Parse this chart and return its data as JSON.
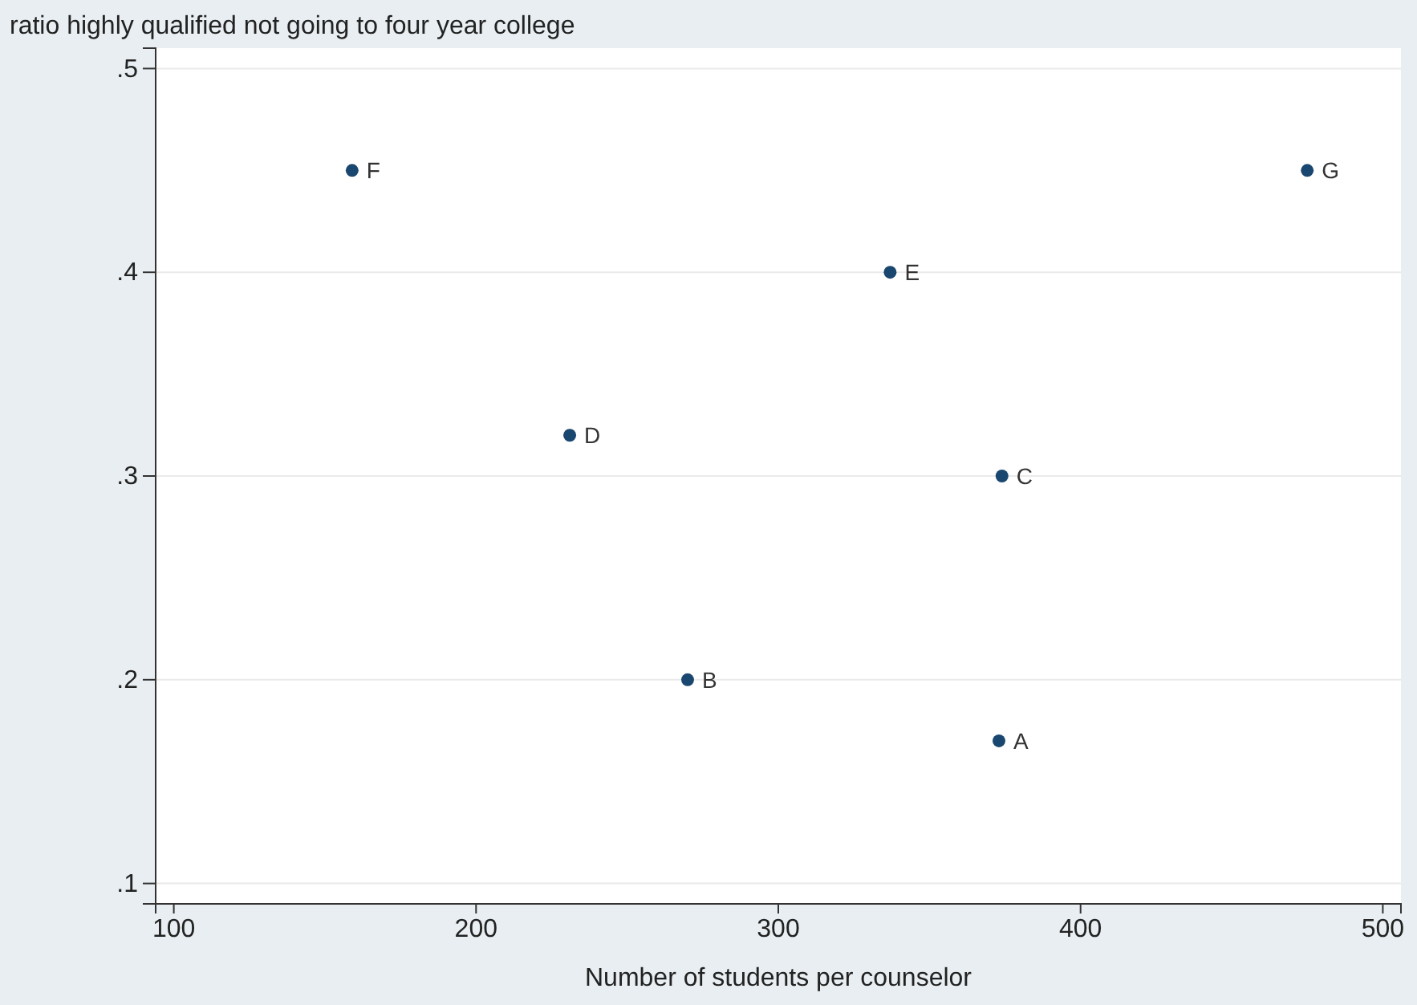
{
  "chart_data": {
    "type": "scatter",
    "ylabel": "ratio highly qualified not going to four year college",
    "xlabel": "Number of students per counselor",
    "x": [
      373,
      270,
      374,
      231,
      337,
      159,
      475
    ],
    "series": [
      {
        "color": "#1a476f",
        "values": [
          0.17,
          0.2,
          0.3,
          0.32,
          0.4,
          0.45,
          0.45
        ],
        "value_labels": [
          "A",
          "B",
          "C",
          "D",
          "E",
          "F",
          "G"
        ]
      }
    ],
    "xlim": [
      94,
      506
    ],
    "ylim": [
      0.09,
      0.51
    ],
    "xticks": [
      100,
      200,
      300,
      400,
      500
    ],
    "yticks": [
      {
        "value": 0.1,
        "label": ".1"
      },
      {
        "value": 0.2,
        "label": ".2"
      },
      {
        "value": 0.3,
        "label": ".3"
      },
      {
        "value": 0.4,
        "label": ".4"
      },
      {
        "value": 0.5,
        "label": ".5"
      }
    ],
    "grid": "y",
    "marker": "circle"
  }
}
